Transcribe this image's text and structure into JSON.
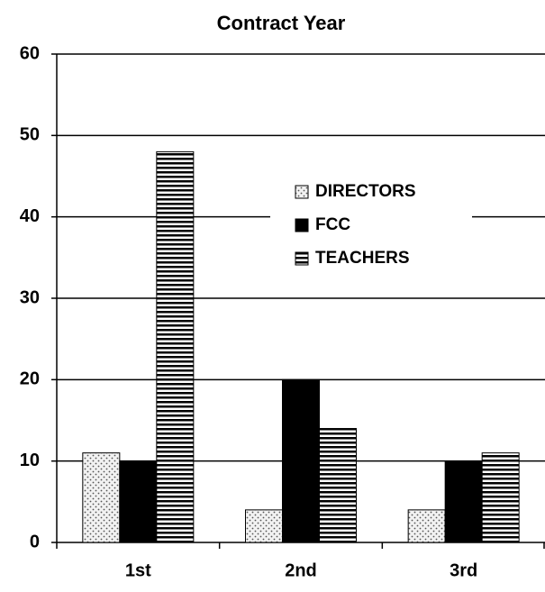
{
  "chart_data": {
    "type": "bar",
    "title": "Contract Year",
    "categories": [
      "1st",
      "2nd",
      "3rd"
    ],
    "series": [
      {
        "name": "DIRECTORS",
        "color": "#ffffff",
        "pattern": "dots",
        "values": [
          11,
          4,
          4
        ]
      },
      {
        "name": "FCC",
        "color": "#000000",
        "pattern": "solid",
        "values": [
          10,
          20,
          10
        ]
      },
      {
        "name": "TEACHERS",
        "color": "#ffffff",
        "pattern": "stripes",
        "values": [
          48,
          14,
          11
        ]
      }
    ],
    "ylim": [
      0,
      60
    ],
    "yticks": [
      0,
      10,
      20,
      30,
      40,
      50,
      60
    ],
    "grid": true,
    "legend": "upper right"
  }
}
